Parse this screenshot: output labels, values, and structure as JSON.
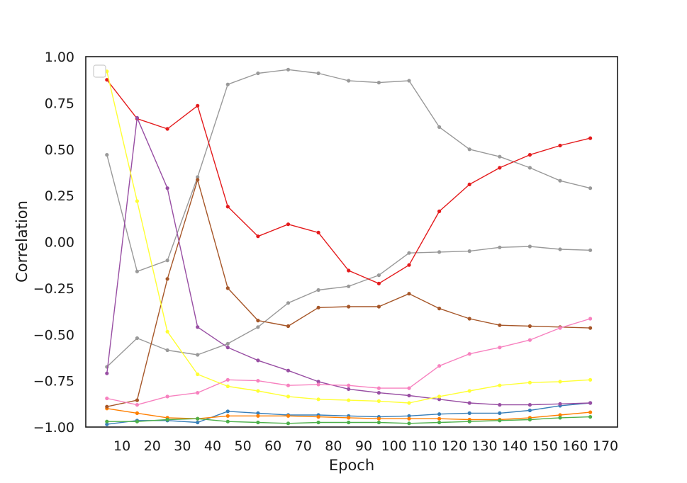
{
  "chart_data": {
    "type": "line",
    "title": "",
    "xlabel": "Epoch",
    "ylabel": "Correlation",
    "xlim": [
      -2,
      174
    ],
    "ylim": [
      -1.0,
      1.0
    ],
    "x_ticks": [
      10,
      20,
      30,
      40,
      50,
      60,
      70,
      80,
      90,
      100,
      110,
      120,
      130,
      140,
      150,
      160,
      170
    ],
    "y_ticks": [
      1.0,
      0.75,
      0.5,
      0.25,
      0.0,
      -0.25,
      -0.5,
      -0.75,
      -1.0
    ],
    "y_tick_labels": [
      "1.00",
      "0.75",
      "0.50",
      "0.25",
      "0.00",
      "−0.25",
      "−0.50",
      "−0.75",
      "−1.00"
    ],
    "grid": false,
    "legend": "top-left (empty box)",
    "x": [
      5,
      15,
      25,
      35,
      45,
      55,
      65,
      75,
      85,
      95,
      105,
      115,
      125,
      135,
      145,
      155,
      165
    ],
    "series": [
      {
        "color": "#377eb8",
        "values": [
          -0.985,
          -0.965,
          -0.965,
          -0.975,
          -0.915,
          -0.925,
          -0.935,
          -0.935,
          -0.94,
          -0.945,
          -0.94,
          -0.93,
          -0.925,
          -0.925,
          -0.91,
          -0.885,
          -0.87
        ]
      },
      {
        "color": "#ff7f00",
        "values": [
          -0.9,
          -0.925,
          -0.95,
          -0.955,
          -0.94,
          -0.94,
          -0.94,
          -0.945,
          -0.95,
          -0.955,
          -0.955,
          -0.955,
          -0.96,
          -0.96,
          -0.95,
          -0.935,
          -0.92
        ]
      },
      {
        "color": "#4daf4a",
        "values": [
          -0.97,
          -0.97,
          -0.96,
          -0.955,
          -0.97,
          -0.975,
          -0.98,
          -0.975,
          -0.975,
          -0.975,
          -0.98,
          -0.975,
          -0.97,
          -0.965,
          -0.96,
          -0.95,
          -0.945
        ]
      },
      {
        "color": "#999999",
        "values": [
          -0.675,
          -0.52,
          -0.585,
          -0.61,
          -0.55,
          -0.46,
          -0.33,
          -0.26,
          -0.24,
          -0.18,
          -0.06,
          -0.055,
          -0.05,
          -0.03,
          -0.025,
          -0.04,
          -0.045
        ]
      },
      {
        "color": "#999999",
        "values": [
          0.47,
          -0.16,
          -0.1,
          0.35,
          0.85,
          0.91,
          0.93,
          0.91,
          0.87,
          0.86,
          0.87,
          0.62,
          0.5,
          0.46,
          0.4,
          0.33,
          0.29
        ]
      },
      {
        "color": "#a65628",
        "values": [
          -0.89,
          -0.855,
          -0.2,
          0.335,
          -0.25,
          -0.425,
          -0.455,
          -0.355,
          -0.35,
          -0.35,
          -0.28,
          -0.36,
          -0.415,
          -0.45,
          -0.455,
          -0.46,
          -0.465
        ]
      },
      {
        "color": "#e41a1c",
        "values": [
          0.875,
          0.665,
          0.61,
          0.735,
          0.19,
          0.03,
          0.095,
          0.05,
          -0.155,
          -0.225,
          -0.125,
          0.165,
          0.31,
          0.4,
          0.47,
          0.52,
          0.56
        ]
      },
      {
        "color": "#984ea3",
        "values": [
          -0.71,
          0.67,
          0.29,
          -0.46,
          -0.57,
          -0.64,
          -0.695,
          -0.755,
          -0.795,
          -0.815,
          -0.83,
          -0.85,
          -0.87,
          -0.88,
          -0.88,
          -0.875,
          -0.87
        ]
      },
      {
        "color": "#f781bf",
        "values": [
          -0.845,
          -0.88,
          -0.835,
          -0.815,
          -0.745,
          -0.75,
          -0.775,
          -0.77,
          -0.775,
          -0.79,
          -0.79,
          -0.67,
          -0.605,
          -0.57,
          -0.53,
          -0.465,
          -0.415
        ]
      },
      {
        "color": "#ffff33",
        "values": [
          0.92,
          0.22,
          -0.485,
          -0.715,
          -0.78,
          -0.805,
          -0.835,
          -0.85,
          -0.855,
          -0.86,
          -0.87,
          -0.835,
          -0.805,
          -0.775,
          -0.76,
          -0.755,
          -0.745
        ]
      }
    ]
  }
}
